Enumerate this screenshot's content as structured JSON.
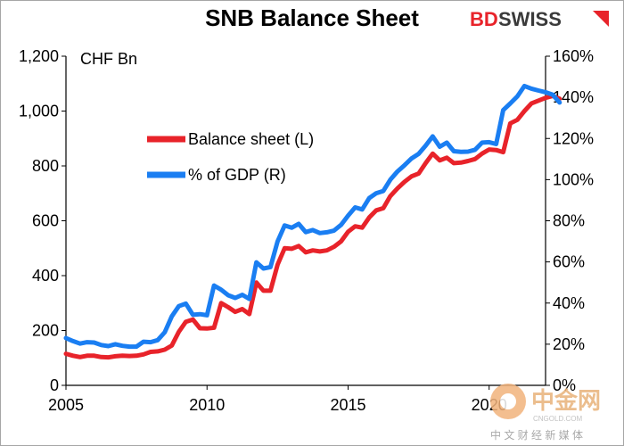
{
  "chart_data": {
    "type": "line",
    "title": "SNB Balance Sheet",
    "unit_label": "CHF Bn",
    "x_ticks": [
      "2005",
      "2010",
      "2015",
      "2020"
    ],
    "x_range": [
      2005,
      2022
    ],
    "y_left_ticks": [
      "0",
      "200",
      "400",
      "600",
      "800",
      "1,000",
      "1,200"
    ],
    "y_left_range": [
      0,
      1200
    ],
    "y_right_ticks": [
      "0%",
      "20%",
      "40%",
      "60%",
      "80%",
      "100%",
      "120%",
      "140%",
      "160%"
    ],
    "y_right_range": [
      0,
      160
    ],
    "legend_position": "upper-left",
    "series": [
      {
        "name": "Balance sheet (L)",
        "axis": "left",
        "color": "#e8232a",
        "points": [
          [
            2005.0,
            115
          ],
          [
            2005.25,
            108
          ],
          [
            2005.5,
            103
          ],
          [
            2005.75,
            108
          ],
          [
            2006.0,
            108
          ],
          [
            2006.25,
            103
          ],
          [
            2006.5,
            102
          ],
          [
            2006.75,
            106
          ],
          [
            2007.0,
            108
          ],
          [
            2007.25,
            107
          ],
          [
            2007.5,
            108
          ],
          [
            2007.75,
            113
          ],
          [
            2008.0,
            122
          ],
          [
            2008.25,
            124
          ],
          [
            2008.5,
            130
          ],
          [
            2008.75,
            145
          ],
          [
            2009.0,
            195
          ],
          [
            2009.25,
            232
          ],
          [
            2009.5,
            240
          ],
          [
            2009.75,
            208
          ],
          [
            2010.0,
            207
          ],
          [
            2010.25,
            210
          ],
          [
            2010.5,
            300
          ],
          [
            2010.75,
            285
          ],
          [
            2011.0,
            268
          ],
          [
            2011.25,
            278
          ],
          [
            2011.5,
            260
          ],
          [
            2011.75,
            375
          ],
          [
            2012.0,
            345
          ],
          [
            2012.25,
            345
          ],
          [
            2012.5,
            440
          ],
          [
            2012.75,
            500
          ],
          [
            2013.0,
            498
          ],
          [
            2013.25,
            508
          ],
          [
            2013.5,
            485
          ],
          [
            2013.75,
            492
          ],
          [
            2014.0,
            488
          ],
          [
            2014.25,
            492
          ],
          [
            2014.5,
            505
          ],
          [
            2014.75,
            525
          ],
          [
            2015.0,
            560
          ],
          [
            2015.25,
            580
          ],
          [
            2015.5,
            575
          ],
          [
            2015.75,
            612
          ],
          [
            2016.0,
            638
          ],
          [
            2016.25,
            646
          ],
          [
            2016.5,
            690
          ],
          [
            2016.75,
            718
          ],
          [
            2017.0,
            742
          ],
          [
            2017.25,
            762
          ],
          [
            2017.5,
            772
          ],
          [
            2017.75,
            810
          ],
          [
            2018.0,
            845
          ],
          [
            2018.25,
            820
          ],
          [
            2018.5,
            830
          ],
          [
            2018.75,
            810
          ],
          [
            2019.0,
            812
          ],
          [
            2019.25,
            818
          ],
          [
            2019.5,
            825
          ],
          [
            2019.75,
            845
          ],
          [
            2020.0,
            860
          ],
          [
            2020.25,
            858
          ],
          [
            2020.5,
            850
          ],
          [
            2020.75,
            955
          ],
          [
            2021.0,
            968
          ],
          [
            2021.25,
            1000
          ],
          [
            2021.5,
            1028
          ],
          [
            2021.75,
            1038
          ],
          [
            2022.0,
            1048
          ],
          [
            2022.25,
            1055
          ],
          [
            2022.5,
            1045
          ]
        ]
      },
      {
        "name": "% of GDP (R)",
        "axis": "right",
        "color": "#1a7ef2",
        "points": [
          [
            2005.0,
            23.0
          ],
          [
            2005.25,
            21.5
          ],
          [
            2005.5,
            20.3
          ],
          [
            2005.75,
            21.0
          ],
          [
            2006.0,
            20.8
          ],
          [
            2006.25,
            19.6
          ],
          [
            2006.5,
            19.1
          ],
          [
            2006.75,
            20.0
          ],
          [
            2007.0,
            19.2
          ],
          [
            2007.25,
            18.8
          ],
          [
            2007.5,
            18.8
          ],
          [
            2007.75,
            21.2
          ],
          [
            2008.0,
            21.0
          ],
          [
            2008.25,
            22.0
          ],
          [
            2008.5,
            25.8
          ],
          [
            2008.75,
            33.5
          ],
          [
            2009.0,
            38.5
          ],
          [
            2009.25,
            39.7
          ],
          [
            2009.5,
            34.3
          ],
          [
            2009.75,
            34.6
          ],
          [
            2010.0,
            34.1
          ],
          [
            2010.25,
            48.5
          ],
          [
            2010.5,
            46.5
          ],
          [
            2010.75,
            43.8
          ],
          [
            2011.0,
            42.5
          ],
          [
            2011.25,
            44.0
          ],
          [
            2011.5,
            42.0
          ],
          [
            2011.75,
            59.8
          ],
          [
            2012.0,
            56.8
          ],
          [
            2012.25,
            57.5
          ],
          [
            2012.5,
            70.0
          ],
          [
            2012.75,
            77.7
          ],
          [
            2013.0,
            76.6
          ],
          [
            2013.25,
            78.5
          ],
          [
            2013.5,
            74.5
          ],
          [
            2013.75,
            75.5
          ],
          [
            2014.0,
            74.0
          ],
          [
            2014.25,
            74.4
          ],
          [
            2014.5,
            75.2
          ],
          [
            2014.75,
            78.0
          ],
          [
            2015.0,
            82.5
          ],
          [
            2015.25,
            86.5
          ],
          [
            2015.5,
            85.5
          ],
          [
            2015.75,
            91.0
          ],
          [
            2016.0,
            93.4
          ],
          [
            2016.25,
            94.5
          ],
          [
            2016.5,
            100.0
          ],
          [
            2016.75,
            104.0
          ],
          [
            2017.0,
            107.0
          ],
          [
            2017.25,
            110.3
          ],
          [
            2017.5,
            112.5
          ],
          [
            2017.75,
            116.5
          ],
          [
            2018.0,
            121.0
          ],
          [
            2018.25,
            116.0
          ],
          [
            2018.5,
            118.0
          ],
          [
            2018.75,
            113.8
          ],
          [
            2019.0,
            113.5
          ],
          [
            2019.25,
            113.6
          ],
          [
            2019.5,
            114.5
          ],
          [
            2019.75,
            118.0
          ],
          [
            2020.0,
            118.2
          ],
          [
            2020.25,
            117.3
          ],
          [
            2020.5,
            133.8
          ],
          [
            2020.75,
            137.0
          ],
          [
            2021.0,
            140.5
          ],
          [
            2021.25,
            145.5
          ],
          [
            2021.5,
            144.2
          ],
          [
            2021.75,
            143.3
          ],
          [
            2022.0,
            142.5
          ],
          [
            2022.25,
            141.3
          ],
          [
            2022.5,
            137.5
          ]
        ]
      }
    ]
  },
  "brand": {
    "logo_bd": "BD",
    "logo_swiss": "SWISS",
    "bd_color": "#e8232a",
    "swiss_color": "#3a3a3a"
  },
  "watermark": {
    "name_cn": "中金网",
    "site": "CNGOLD.COM",
    "tagline_cn": "中 文 财 经 新 媒 体"
  }
}
